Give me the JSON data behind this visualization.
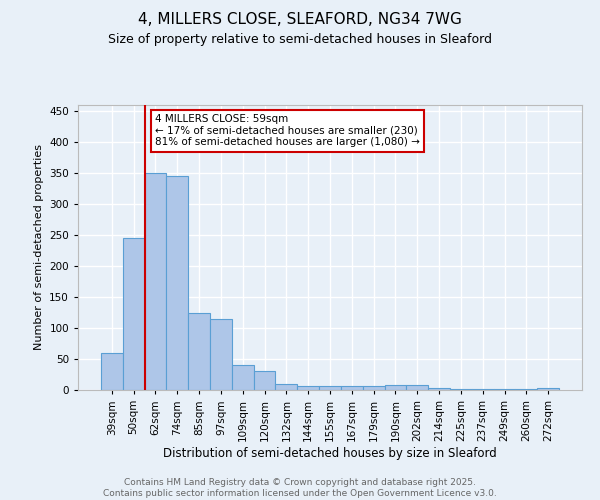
{
  "title1": "4, MILLERS CLOSE, SLEAFORD, NG34 7WG",
  "title2": "Size of property relative to semi-detached houses in Sleaford",
  "xlabel": "Distribution of semi-detached houses by size in Sleaford",
  "ylabel": "Number of semi-detached properties",
  "categories": [
    "39sqm",
    "50sqm",
    "62sqm",
    "74sqm",
    "85sqm",
    "97sqm",
    "109sqm",
    "120sqm",
    "132sqm",
    "144sqm",
    "155sqm",
    "167sqm",
    "179sqm",
    "190sqm",
    "202sqm",
    "214sqm",
    "225sqm",
    "237sqm",
    "249sqm",
    "260sqm",
    "272sqm"
  ],
  "values": [
    60,
    245,
    350,
    345,
    125,
    115,
    40,
    30,
    10,
    6,
    7,
    7,
    6,
    8,
    8,
    3,
    1,
    1,
    1,
    1,
    3
  ],
  "bar_color": "#aec6e8",
  "bar_edge_color": "#5a9fd4",
  "subject_sqm": 59,
  "pct_smaller": 17,
  "count_smaller": 230,
  "pct_larger": 81,
  "count_larger": 1080,
  "annotation_line1": "4 MILLERS CLOSE: 59sqm",
  "annotation_line2": "← 17% of semi-detached houses are smaller (230)",
  "annotation_line3": "81% of semi-detached houses are larger (1,080) →",
  "footer1": "Contains HM Land Registry data © Crown copyright and database right 2025.",
  "footer2": "Contains public sector information licensed under the Open Government Licence v3.0.",
  "ylim": [
    0,
    460
  ],
  "yticks": [
    0,
    50,
    100,
    150,
    200,
    250,
    300,
    350,
    400,
    450
  ],
  "bg_color": "#e8f0f8",
  "plot_bg_color": "#e8f0f8",
  "grid_color": "#ffffff",
  "annotation_box_color": "#ffffff",
  "annotation_box_edge": "#cc0000",
  "vline_color": "#cc0000",
  "subject_bar_index": 1.5
}
